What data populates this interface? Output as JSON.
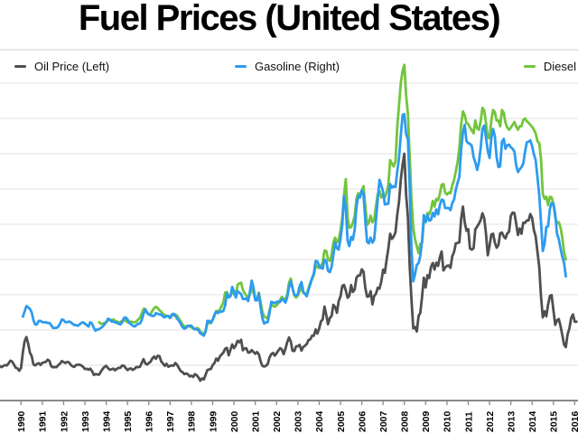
{
  "header": {
    "title": "Fuel Prices (United States)"
  },
  "colors": {
    "oil": "#4f4f4f",
    "gasoline": "#2d9bf0",
    "diesel": "#72c53c",
    "gridline": "#e2e2e2",
    "separator": "#cccccc",
    "axis": "#8a8a8a",
    "tick_label": "#000000"
  },
  "chart_data": {
    "type": "line",
    "title": "Fuel Prices (United States)",
    "grid": true,
    "legend_position": "top",
    "x_ticks": [
      "1990",
      "1991",
      "1992",
      "1993",
      "1994",
      "1995",
      "1996",
      "1997",
      "1998",
      "1999",
      "2000",
      "2001",
      "2002",
      "2003",
      "2004",
      "2005",
      "2006",
      "2007",
      "2008",
      "2009",
      "2010",
      "2011",
      "2012",
      "2013",
      "2014",
      "2015",
      "2016"
    ],
    "left_ylim": [
      0,
      180
    ],
    "right_ylim": [
      0,
      4.5
    ],
    "x_unit": "month",
    "series": [
      {
        "name": "Oil Price (Left)",
        "axis": "left",
        "color_key": "oil",
        "start": "1989-07",
        "values": [
          19.6,
          18.9,
          19.6,
          20.1,
          19.9,
          21.1,
          22.6,
          22.1,
          20.4,
          18.6,
          18.2,
          16.9,
          18.4,
          27.3,
          33.5,
          36.0,
          32.3,
          27.2,
          25.2,
          20.5,
          19.9,
          20.8,
          21.2,
          20.2,
          21.4,
          21.7,
          21.9,
          23.2,
          22.5,
          19.5,
          18.8,
          19.0,
          18.9,
          20.2,
          20.9,
          22.4,
          21.8,
          21.3,
          21.9,
          21.7,
          20.3,
          19.4,
          19.1,
          20.1,
          20.3,
          20.3,
          19.9,
          19.1,
          17.9,
          18.0,
          17.5,
          18.1,
          16.7,
          14.5,
          15.0,
          14.8,
          14.7,
          16.4,
          17.9,
          19.1,
          19.7,
          18.4,
          17.5,
          17.7,
          18.1,
          17.2,
          18.0,
          18.5,
          18.6,
          19.9,
          19.7,
          18.4,
          17.3,
          18.0,
          18.2,
          17.4,
          18.0,
          19.0,
          18.9,
          19.1,
          21.3,
          23.5,
          21.2,
          20.4,
          21.3,
          22.0,
          23.9,
          24.9,
          23.7,
          25.4,
          25.2,
          22.2,
          21.0,
          19.7,
          20.8,
          19.2,
          19.7,
          19.9,
          19.8,
          21.3,
          20.2,
          18.3,
          16.7,
          16.1,
          15.0,
          15.4,
          14.9,
          13.7,
          14.1,
          13.4,
          15.0,
          14.4,
          13.0,
          11.3,
          12.5,
          12.0,
          14.7,
          17.3,
          17.7,
          17.9,
          20.1,
          21.3,
          23.8,
          22.6,
          25.0,
          26.1,
          27.2,
          29.4,
          29.9,
          25.7,
          28.8,
          31.8,
          29.7,
          31.3,
          33.9,
          33.1,
          34.4,
          28.5,
          29.6,
          29.6,
          27.2,
          27.4,
          28.6,
          27.6,
          26.5,
          27.5,
          26.2,
          22.2,
          19.7,
          19.3,
          19.7,
          20.7,
          24.4,
          26.3,
          27.0,
          25.5,
          26.9,
          28.4,
          29.7,
          28.9,
          26.3,
          29.4,
          33.0,
          35.8,
          33.5,
          28.2,
          28.1,
          30.7,
          30.8,
          31.6,
          28.3,
          30.3,
          31.1,
          32.1,
          34.3,
          34.7,
          36.8,
          36.7,
          40.3,
          38.0,
          40.8,
          44.9,
          46.0,
          53.3,
          48.5,
          43.3,
          46.8,
          48.0,
          54.3,
          53.0,
          49.8,
          56.4,
          59.0,
          65.0,
          65.6,
          62.4,
          58.3,
          59.4,
          65.5,
          61.6,
          62.9,
          69.7,
          70.9,
          71.0,
          74.4,
          73.1,
          63.9,
          58.9,
          59.1,
          62.0,
          54.5,
          59.3,
          60.6,
          64.0,
          63.5,
          67.5,
          74.2,
          72.4,
          79.9,
          86.2,
          94.6,
          91.7,
          93.0,
          95.4,
          105.6,
          112.6,
          125.4,
          133.9,
          140.0,
          116.6,
          103.9,
          76.7,
          57.4,
          41.0,
          41.7,
          39.2,
          48.0,
          49.8,
          59.2,
          69.7,
          64.1,
          71.1,
          69.5,
          75.8,
          78.0,
          74.3,
          78.2,
          76.4,
          81.2,
          84.5,
          73.8,
          75.4,
          76.4,
          76.6,
          75.3,
          81.9,
          84.3,
          89.2,
          89.4,
          89.7,
          102.9,
          110.0,
          101.3,
          96.3,
          97.2,
          86.3,
          85.6,
          86.4,
          97.1,
          98.6,
          100.3,
          102.3,
          106.2,
          103.3,
          94.7,
          82.4,
          87.9,
          94.1,
          94.6,
          89.6,
          86.7,
          88.2,
          94.8,
          95.3,
          93.0,
          92.0,
          94.8,
          95.8,
          104.7,
          106.6,
          106.3,
          100.5,
          93.9,
          97.6,
          94.6,
          100.8,
          100.8,
          102.1,
          102.2,
          105.8,
          103.6,
          96.5,
          93.2,
          84.4,
          75.8,
          59.3,
          47.2,
          50.6,
          47.8,
          54.5,
          59.3,
          59.8,
          51.2,
          42.9,
          45.5,
          46.2,
          42.4,
          37.2,
          31.7,
          30.3,
          37.6,
          41.0,
          46.7,
          48.8,
          44.7,
          44.7
        ]
      },
      {
        "name": "Gasoline (Right)",
        "axis": "right",
        "color_key": "gasoline",
        "start": "1990-08",
        "values": [
          1.19,
          1.26,
          1.34,
          1.32,
          1.3,
          1.25,
          1.14,
          1.08,
          1.08,
          1.13,
          1.13,
          1.11,
          1.11,
          1.11,
          1.1,
          1.1,
          1.07,
          1.03,
          1.03,
          1.03,
          1.05,
          1.09,
          1.15,
          1.14,
          1.11,
          1.11,
          1.12,
          1.11,
          1.09,
          1.07,
          1.07,
          1.06,
          1.08,
          1.1,
          1.11,
          1.09,
          1.07,
          1.05,
          1.11,
          1.09,
          1.03,
          0.99,
          1.01,
          1.01,
          1.03,
          1.05,
          1.08,
          1.11,
          1.16,
          1.15,
          1.12,
          1.12,
          1.11,
          1.1,
          1.09,
          1.08,
          1.11,
          1.17,
          1.18,
          1.15,
          1.1,
          1.08,
          1.06,
          1.05,
          1.07,
          1.09,
          1.09,
          1.14,
          1.23,
          1.29,
          1.25,
          1.22,
          1.21,
          1.2,
          1.2,
          1.24,
          1.23,
          1.22,
          1.22,
          1.19,
          1.18,
          1.2,
          1.2,
          1.17,
          1.22,
          1.23,
          1.2,
          1.16,
          1.13,
          1.09,
          1.04,
          1.02,
          1.03,
          1.06,
          1.06,
          1.06,
          1.03,
          1.01,
          1.01,
          1.0,
          0.95,
          0.94,
          0.92,
          0.98,
          1.13,
          1.13,
          1.1,
          1.15,
          1.22,
          1.26,
          1.24,
          1.26,
          1.26,
          1.27,
          1.35,
          1.52,
          1.46,
          1.48,
          1.61,
          1.55,
          1.46,
          1.55,
          1.53,
          1.51,
          1.44,
          1.44,
          1.45,
          1.41,
          1.55,
          1.7,
          1.6,
          1.42,
          1.42,
          1.52,
          1.32,
          1.17,
          1.09,
          1.11,
          1.11,
          1.24,
          1.4,
          1.39,
          1.38,
          1.4,
          1.4,
          1.4,
          1.44,
          1.42,
          1.39,
          1.46,
          1.61,
          1.69,
          1.59,
          1.5,
          1.49,
          1.51,
          1.62,
          1.68,
          1.55,
          1.51,
          1.48,
          1.57,
          1.65,
          1.74,
          1.8,
          1.98,
          1.97,
          1.91,
          1.88,
          1.87,
          2.0,
          1.98,
          1.84,
          1.82,
          1.9,
          2.06,
          2.24,
          2.16,
          2.14,
          2.29,
          2.49,
          2.9,
          2.72,
          2.26,
          2.19,
          2.32,
          2.28,
          2.42,
          2.74,
          2.9,
          2.88,
          2.98,
          2.93,
          2.55,
          2.25,
          2.23,
          2.31,
          2.24,
          2.28,
          2.56,
          2.86,
          3.13,
          3.05,
          2.96,
          2.78,
          2.79,
          2.79,
          3.07,
          3.02,
          3.04,
          3.03,
          3.25,
          3.44,
          3.76,
          4.05,
          4.06,
          3.78,
          3.7,
          3.05,
          2.15,
          1.69,
          1.79,
          1.92,
          1.95,
          2.05,
          2.27,
          2.63,
          2.53,
          2.63,
          2.55,
          2.56,
          2.66,
          2.61,
          2.71,
          2.64,
          2.77,
          2.85,
          2.84,
          2.73,
          2.73,
          2.73,
          2.7,
          2.8,
          2.85,
          2.99,
          3.09,
          3.17,
          3.56,
          3.8,
          3.91,
          3.68,
          3.65,
          3.64,
          3.61,
          3.45,
          3.38,
          3.27,
          3.38,
          3.58,
          3.85,
          3.9,
          3.73,
          3.54,
          3.44,
          3.72,
          3.85,
          3.75,
          3.45,
          3.31,
          3.32,
          3.67,
          3.71,
          3.57,
          3.62,
          3.63,
          3.59,
          3.57,
          3.53,
          3.34,
          3.24,
          3.28,
          3.31,
          3.36,
          3.53,
          3.66,
          3.67,
          3.69,
          3.61,
          3.49,
          3.41,
          3.17,
          2.91,
          2.54,
          2.12,
          2.22,
          2.46,
          2.47,
          2.72,
          2.8,
          2.79,
          2.64,
          2.37,
          2.29,
          2.16,
          2.04,
          1.95,
          1.76
        ]
      },
      {
        "name": "Diesel",
        "axis": "right",
        "color_key": "diesel",
        "start": "1994-03",
        "values": [
          1.11,
          1.09,
          1.09,
          1.1,
          1.11,
          1.14,
          1.14,
          1.14,
          1.15,
          1.13,
          1.12,
          1.11,
          1.11,
          1.13,
          1.15,
          1.13,
          1.11,
          1.11,
          1.12,
          1.11,
          1.11,
          1.12,
          1.15,
          1.17,
          1.23,
          1.3,
          1.3,
          1.24,
          1.22,
          1.23,
          1.27,
          1.31,
          1.33,
          1.31,
          1.28,
          1.26,
          1.23,
          1.21,
          1.2,
          1.19,
          1.17,
          1.2,
          1.21,
          1.22,
          1.2,
          1.16,
          1.12,
          1.08,
          1.05,
          1.05,
          1.06,
          1.05,
          1.04,
          1.02,
          1.01,
          1.03,
          1.02,
          0.98,
          0.96,
          0.94,
          0.99,
          1.09,
          1.1,
          1.1,
          1.14,
          1.2,
          1.27,
          1.26,
          1.29,
          1.34,
          1.39,
          1.53,
          1.54,
          1.47,
          1.49,
          1.54,
          1.51,
          1.48,
          1.64,
          1.66,
          1.67,
          1.57,
          1.52,
          1.49,
          1.45,
          1.51,
          1.58,
          1.53,
          1.43,
          1.44,
          1.53,
          1.39,
          1.26,
          1.19,
          1.18,
          1.16,
          1.28,
          1.37,
          1.34,
          1.33,
          1.35,
          1.38,
          1.43,
          1.47,
          1.44,
          1.44,
          1.5,
          1.67,
          1.73,
          1.6,
          1.49,
          1.46,
          1.49,
          1.55,
          1.6,
          1.53,
          1.51,
          1.51,
          1.59,
          1.67,
          1.72,
          1.78,
          1.92,
          1.89,
          1.88,
          1.91,
          1.96,
          2.13,
          2.12,
          2.0,
          1.98,
          2.07,
          2.24,
          2.31,
          2.24,
          2.28,
          2.41,
          2.59,
          2.91,
          3.14,
          2.59,
          2.45,
          2.46,
          2.52,
          2.62,
          2.86,
          2.94,
          2.92,
          2.98,
          3.04,
          2.76,
          2.49,
          2.52,
          2.62,
          2.53,
          2.56,
          2.76,
          2.93,
          2.97,
          2.88,
          2.93,
          2.88,
          2.95,
          3.06,
          3.41,
          3.36,
          3.32,
          3.39,
          3.89,
          4.18,
          4.5,
          4.68,
          4.76,
          4.32,
          4.06,
          3.47,
          2.86,
          2.45,
          2.29,
          2.19,
          2.09,
          2.22,
          2.24,
          2.54,
          2.54,
          2.66,
          2.64,
          2.71,
          2.83,
          2.75,
          2.86,
          2.84,
          2.93,
          3.06,
          3.07,
          2.95,
          2.92,
          2.95,
          2.94,
          3.05,
          3.13,
          3.25,
          3.38,
          3.58,
          3.91,
          4.1,
          4.05,
          3.94,
          3.92,
          3.87,
          3.83,
          3.79,
          3.97,
          3.86,
          3.84,
          3.96,
          4.15,
          4.11,
          3.94,
          3.73,
          3.72,
          3.97,
          4.12,
          4.09,
          3.97,
          3.97,
          3.89,
          4.12,
          4.08,
          3.94,
          3.87,
          3.84,
          3.87,
          3.91,
          3.95,
          3.89,
          3.84,
          3.89,
          3.89,
          3.98,
          4.0,
          3.96,
          3.94,
          3.91,
          3.88,
          3.84,
          3.79,
          3.68,
          3.65,
          3.43,
          2.93,
          2.86,
          2.89,
          2.77,
          2.89,
          2.88,
          2.79,
          2.6,
          2.51,
          2.53,
          2.46,
          2.31,
          2.1,
          2.0
        ]
      }
    ]
  }
}
